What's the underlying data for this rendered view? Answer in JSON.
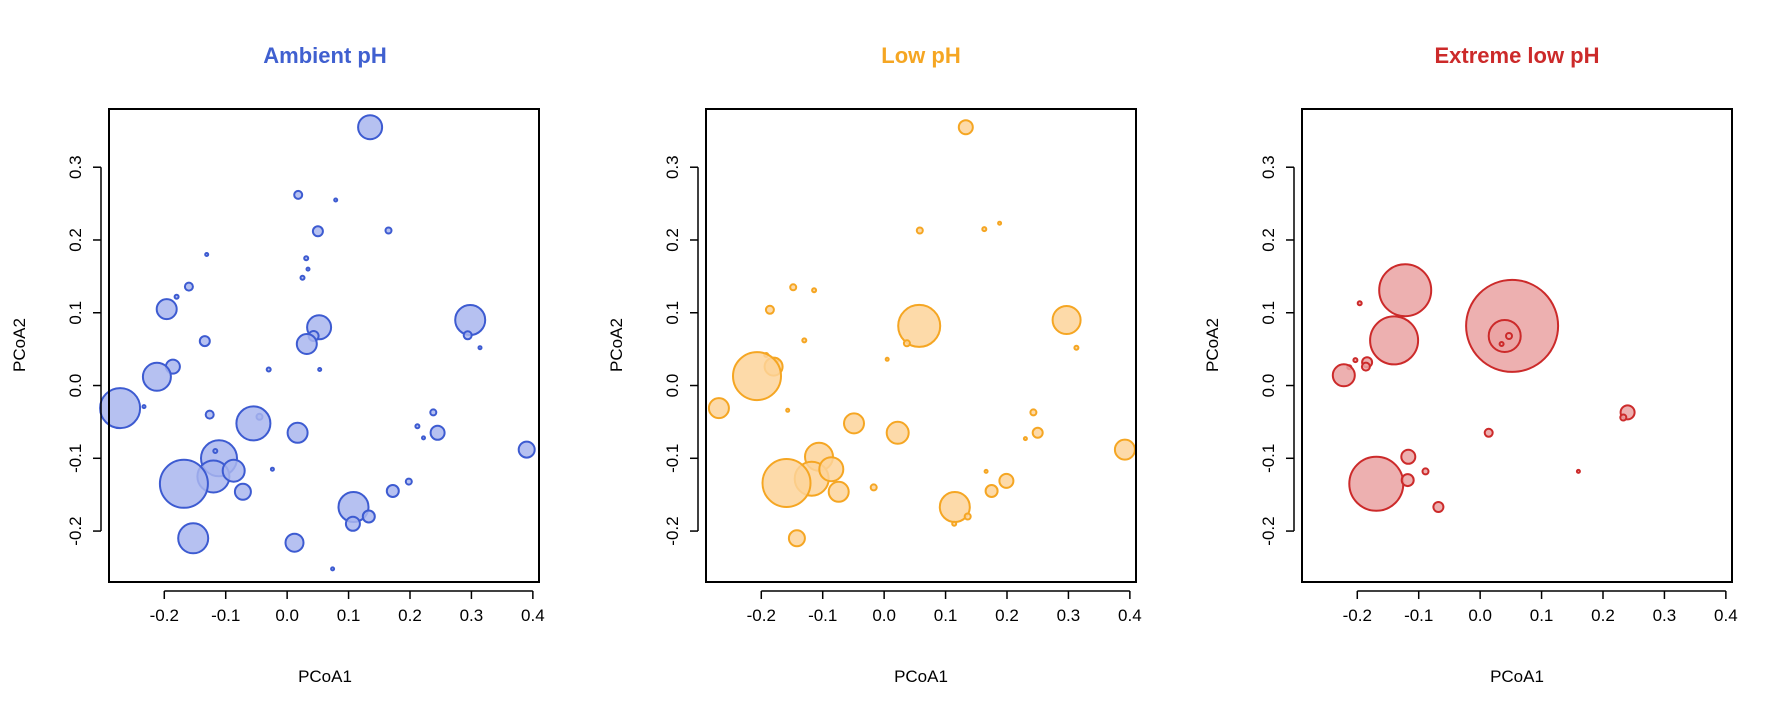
{
  "chart_data": [
    {
      "type": "scatter",
      "title": "Ambient pH",
      "title_color": "#4060d0",
      "point_fill": "#a9b6ee",
      "point_stroke": "#3d5bd1",
      "xlabel": "PCoA1",
      "ylabel": "PCoA2",
      "xlim": [
        -0.29,
        0.41
      ],
      "ylim": [
        -0.27,
        0.38
      ],
      "xticks": [
        "-0.2",
        "-0.1",
        "0.0",
        "0.1",
        "0.2",
        "0.3",
        "0.4"
      ],
      "yticks": [
        "-0.2",
        "-0.1",
        "0.0",
        "0.1",
        "0.2",
        "0.3"
      ],
      "grid": false,
      "points": [
        {
          "x": 0.135,
          "y": 0.355,
          "size": 12
        },
        {
          "x": 0.018,
          "y": 0.262,
          "size": 4
        },
        {
          "x": 0.079,
          "y": 0.255,
          "size": 1
        },
        {
          "x": 0.165,
          "y": 0.213,
          "size": 3
        },
        {
          "x": 0.05,
          "y": 0.212,
          "size": 5
        },
        {
          "x": -0.131,
          "y": 0.18,
          "size": 1
        },
        {
          "x": 0.031,
          "y": 0.175,
          "size": 2
        },
        {
          "x": 0.034,
          "y": 0.16,
          "size": 1
        },
        {
          "x": 0.025,
          "y": 0.148,
          "size": 2
        },
        {
          "x": -0.16,
          "y": 0.136,
          "size": 4
        },
        {
          "x": -0.18,
          "y": 0.122,
          "size": 2
        },
        {
          "x": -0.196,
          "y": 0.105,
          "size": 10
        },
        {
          "x": 0.298,
          "y": 0.09,
          "size": 15
        },
        {
          "x": 0.052,
          "y": 0.08,
          "size": 12
        },
        {
          "x": 0.043,
          "y": 0.068,
          "size": 5
        },
        {
          "x": 0.294,
          "y": 0.069,
          "size": 4
        },
        {
          "x": 0.032,
          "y": 0.057,
          "size": 10
        },
        {
          "x": -0.134,
          "y": 0.061,
          "size": 5
        },
        {
          "x": 0.314,
          "y": 0.052,
          "size": 1
        },
        {
          "x": -0.186,
          "y": 0.026,
          "size": 7
        },
        {
          "x": -0.03,
          "y": 0.022,
          "size": 2
        },
        {
          "x": 0.053,
          "y": 0.022,
          "size": 1
        },
        {
          "x": -0.212,
          "y": 0.012,
          "size": 14
        },
        {
          "x": -0.272,
          "y": -0.031,
          "size": 20
        },
        {
          "x": -0.233,
          "y": -0.029,
          "size": 1
        },
        {
          "x": -0.126,
          "y": -0.04,
          "size": 4
        },
        {
          "x": -0.045,
          "y": -0.043,
          "size": 3
        },
        {
          "x": -0.055,
          "y": -0.052,
          "size": 17
        },
        {
          "x": 0.238,
          "y": -0.037,
          "size": 3
        },
        {
          "x": 0.212,
          "y": -0.056,
          "size": 2
        },
        {
          "x": 0.245,
          "y": -0.065,
          "size": 7
        },
        {
          "x": 0.017,
          "y": -0.065,
          "size": 10
        },
        {
          "x": 0.222,
          "y": -0.072,
          "size": 1
        },
        {
          "x": 0.39,
          "y": -0.088,
          "size": 8
        },
        {
          "x": -0.111,
          "y": -0.1,
          "size": 18
        },
        {
          "x": -0.117,
          "y": -0.09,
          "size": 2
        },
        {
          "x": -0.12,
          "y": -0.125,
          "size": 16
        },
        {
          "x": -0.087,
          "y": -0.117,
          "size": 11
        },
        {
          "x": -0.024,
          "y": -0.115,
          "size": 1
        },
        {
          "x": -0.168,
          "y": -0.135,
          "size": 24
        },
        {
          "x": -0.072,
          "y": -0.146,
          "size": 8
        },
        {
          "x": 0.198,
          "y": -0.132,
          "size": 3
        },
        {
          "x": 0.172,
          "y": -0.145,
          "size": 6
        },
        {
          "x": 0.108,
          "y": -0.167,
          "size": 15
        },
        {
          "x": 0.133,
          "y": -0.18,
          "size": 6
        },
        {
          "x": 0.107,
          "y": -0.19,
          "size": 7
        },
        {
          "x": -0.153,
          "y": -0.21,
          "size": 15
        },
        {
          "x": 0.012,
          "y": -0.216,
          "size": 9
        },
        {
          "x": 0.074,
          "y": -0.252,
          "size": 1
        }
      ]
    },
    {
      "type": "scatter",
      "title": "Low pH",
      "title_color": "#f5a623",
      "point_fill": "#fdd49a",
      "point_stroke": "#f5a623",
      "xlabel": "PCoA1",
      "ylabel": "PCoA2",
      "xlim": [
        -0.29,
        0.41
      ],
      "ylim": [
        -0.27,
        0.38
      ],
      "xticks": [
        "-0.2",
        "-0.1",
        "0.0",
        "0.1",
        "0.2",
        "0.3",
        "0.4"
      ],
      "yticks": [
        "-0.2",
        "-0.1",
        "0.0",
        "0.1",
        "0.2",
        "0.3"
      ],
      "grid": false,
      "points": [
        {
          "x": 0.133,
          "y": 0.355,
          "size": 7
        },
        {
          "x": 0.188,
          "y": 0.223,
          "size": 1
        },
        {
          "x": 0.163,
          "y": 0.215,
          "size": 2
        },
        {
          "x": 0.058,
          "y": 0.213,
          "size": 3
        },
        {
          "x": -0.148,
          "y": 0.135,
          "size": 3
        },
        {
          "x": -0.114,
          "y": 0.131,
          "size": 2
        },
        {
          "x": -0.186,
          "y": 0.104,
          "size": 4
        },
        {
          "x": 0.057,
          "y": 0.082,
          "size": 21
        },
        {
          "x": 0.297,
          "y": 0.09,
          "size": 14
        },
        {
          "x": -0.13,
          "y": 0.062,
          "size": 2
        },
        {
          "x": 0.037,
          "y": 0.058,
          "size": 3
        },
        {
          "x": 0.313,
          "y": 0.052,
          "size": 2
        },
        {
          "x": -0.192,
          "y": 0.042,
          "size": 2
        },
        {
          "x": -0.175,
          "y": 0.035,
          "size": 2
        },
        {
          "x": -0.18,
          "y": 0.026,
          "size": 9
        },
        {
          "x": -0.207,
          "y": 0.013,
          "size": 24
        },
        {
          "x": 0.005,
          "y": 0.036,
          "size": 1
        },
        {
          "x": -0.269,
          "y": -0.031,
          "size": 10
        },
        {
          "x": -0.157,
          "y": -0.034,
          "size": 1
        },
        {
          "x": 0.243,
          "y": -0.037,
          "size": 3
        },
        {
          "x": -0.049,
          "y": -0.052,
          "size": 10
        },
        {
          "x": 0.022,
          "y": -0.065,
          "size": 11
        },
        {
          "x": 0.25,
          "y": -0.065,
          "size": 5
        },
        {
          "x": 0.23,
          "y": -0.073,
          "size": 1
        },
        {
          "x": 0.392,
          "y": -0.088,
          "size": 10
        },
        {
          "x": -0.106,
          "y": -0.098,
          "size": 14
        },
        {
          "x": -0.118,
          "y": -0.128,
          "size": 17
        },
        {
          "x": -0.086,
          "y": -0.115,
          "size": 12
        },
        {
          "x": -0.159,
          "y": -0.134,
          "size": 24
        },
        {
          "x": 0.166,
          "y": -0.118,
          "size": 1
        },
        {
          "x": 0.199,
          "y": -0.131,
          "size": 7
        },
        {
          "x": -0.017,
          "y": -0.14,
          "size": 3
        },
        {
          "x": -0.074,
          "y": -0.146,
          "size": 10
        },
        {
          "x": 0.175,
          "y": -0.145,
          "size": 6
        },
        {
          "x": 0.115,
          "y": -0.167,
          "size": 15
        },
        {
          "x": 0.136,
          "y": -0.18,
          "size": 3
        },
        {
          "x": 0.114,
          "y": -0.19,
          "size": 2
        },
        {
          "x": -0.142,
          "y": -0.21,
          "size": 8
        }
      ]
    },
    {
      "type": "scatter",
      "title": "Extreme low pH",
      "title_color": "#cc2a2a",
      "point_fill": "#eaa2a2",
      "point_stroke": "#cc2a2a",
      "xlabel": "PCoA1",
      "ylabel": "PCoA2",
      "xlim": [
        -0.29,
        0.41
      ],
      "ylim": [
        -0.27,
        0.38
      ],
      "xticks": [
        "-0.2",
        "-0.1",
        "0.0",
        "0.1",
        "0.2",
        "0.3",
        "0.4"
      ],
      "yticks": [
        "-0.2",
        "-0.1",
        "0.0",
        "0.1",
        "0.2",
        "0.3"
      ],
      "grid": false,
      "points": [
        {
          "x": 0.052,
          "y": 0.082,
          "size": 46
        },
        {
          "x": -0.122,
          "y": 0.131,
          "size": 26
        },
        {
          "x": -0.14,
          "y": 0.062,
          "size": 24
        },
        {
          "x": 0.04,
          "y": 0.068,
          "size": 16
        },
        {
          "x": 0.047,
          "y": 0.068,
          "size": 3
        },
        {
          "x": 0.035,
          "y": 0.057,
          "size": 2
        },
        {
          "x": -0.196,
          "y": 0.113,
          "size": 2
        },
        {
          "x": -0.184,
          "y": 0.032,
          "size": 5
        },
        {
          "x": -0.186,
          "y": 0.026,
          "size": 4
        },
        {
          "x": -0.203,
          "y": 0.035,
          "size": 2
        },
        {
          "x": -0.213,
          "y": 0.025,
          "size": 2
        },
        {
          "x": -0.222,
          "y": 0.014,
          "size": 11
        },
        {
          "x": 0.24,
          "y": -0.037,
          "size": 7
        },
        {
          "x": 0.233,
          "y": -0.044,
          "size": 3
        },
        {
          "x": 0.014,
          "y": -0.065,
          "size": 4
        },
        {
          "x": -0.169,
          "y": -0.135,
          "size": 27
        },
        {
          "x": -0.117,
          "y": -0.098,
          "size": 7
        },
        {
          "x": -0.118,
          "y": -0.13,
          "size": 6
        },
        {
          "x": -0.089,
          "y": -0.118,
          "size": 3
        },
        {
          "x": 0.16,
          "y": -0.118,
          "size": 1
        },
        {
          "x": -0.068,
          "y": -0.167,
          "size": 5
        }
      ]
    }
  ]
}
